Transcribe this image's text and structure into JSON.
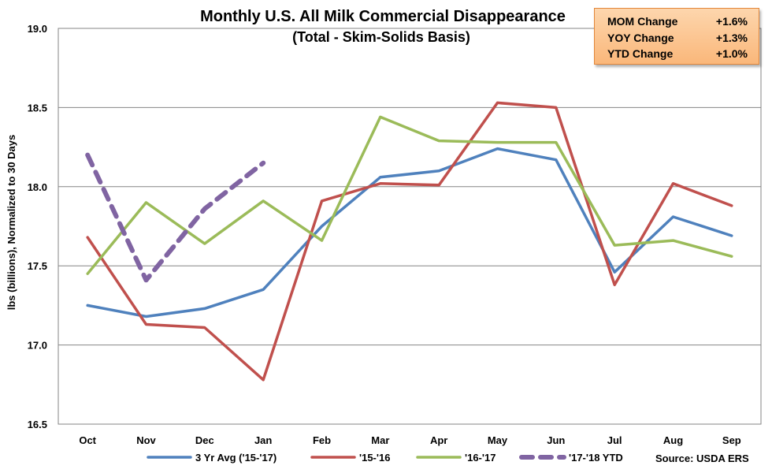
{
  "chart_data": {
    "type": "line",
    "title": "Monthly U.S. All Milk Commercial Disappearance",
    "subtitle": "(Total - Skim-Solids Basis)",
    "ylabel": "lbs (billions), Normalized to 30 Days",
    "xlabel": "",
    "categories": [
      "Oct",
      "Nov",
      "Dec",
      "Jan",
      "Feb",
      "Mar",
      "Apr",
      "May",
      "Jun",
      "Jul",
      "Aug",
      "Sep"
    ],
    "ylim": [
      16.5,
      19.0
    ],
    "yticks": [
      "16.5",
      "17.0",
      "17.5",
      "18.0",
      "18.5",
      "19.0"
    ],
    "grid": true,
    "legend_position": "bottom",
    "series": [
      {
        "name": "3 Yr Avg ('15-'17)",
        "color": "#4f81bd",
        "dashed": false,
        "values": [
          17.25,
          17.18,
          17.23,
          17.35,
          17.75,
          18.06,
          18.1,
          18.24,
          18.17,
          17.46,
          17.81,
          17.69
        ]
      },
      {
        "name": "'15-'16",
        "color": "#c0504d",
        "dashed": false,
        "values": [
          17.68,
          17.13,
          17.11,
          16.78,
          17.91,
          18.02,
          18.01,
          18.53,
          18.5,
          17.38,
          18.02,
          17.88
        ]
      },
      {
        "name": "'16-'17",
        "color": "#9bbb59",
        "dashed": false,
        "values": [
          17.45,
          17.9,
          17.64,
          17.91,
          17.66,
          18.44,
          18.29,
          18.28,
          18.28,
          17.63,
          17.66,
          17.56
        ]
      },
      {
        "name": "'17-'18 YTD",
        "color": "#8064a2",
        "dashed": true,
        "values": [
          18.2,
          17.41,
          17.86,
          18.15,
          null,
          null,
          null,
          null,
          null,
          null,
          null,
          null
        ]
      }
    ],
    "source": "Source: USDA ERS"
  },
  "stats": [
    {
      "label": "MOM Change",
      "value": "+1.6%"
    },
    {
      "label": "YOY Change",
      "value": "+1.3%"
    },
    {
      "label": "YTD Change",
      "value": "+1.0%"
    }
  ],
  "colors": {
    "grid": "#868686",
    "plot_border": "#868686",
    "box_fill": "#fbc38f",
    "box_border": "#e2873a"
  }
}
